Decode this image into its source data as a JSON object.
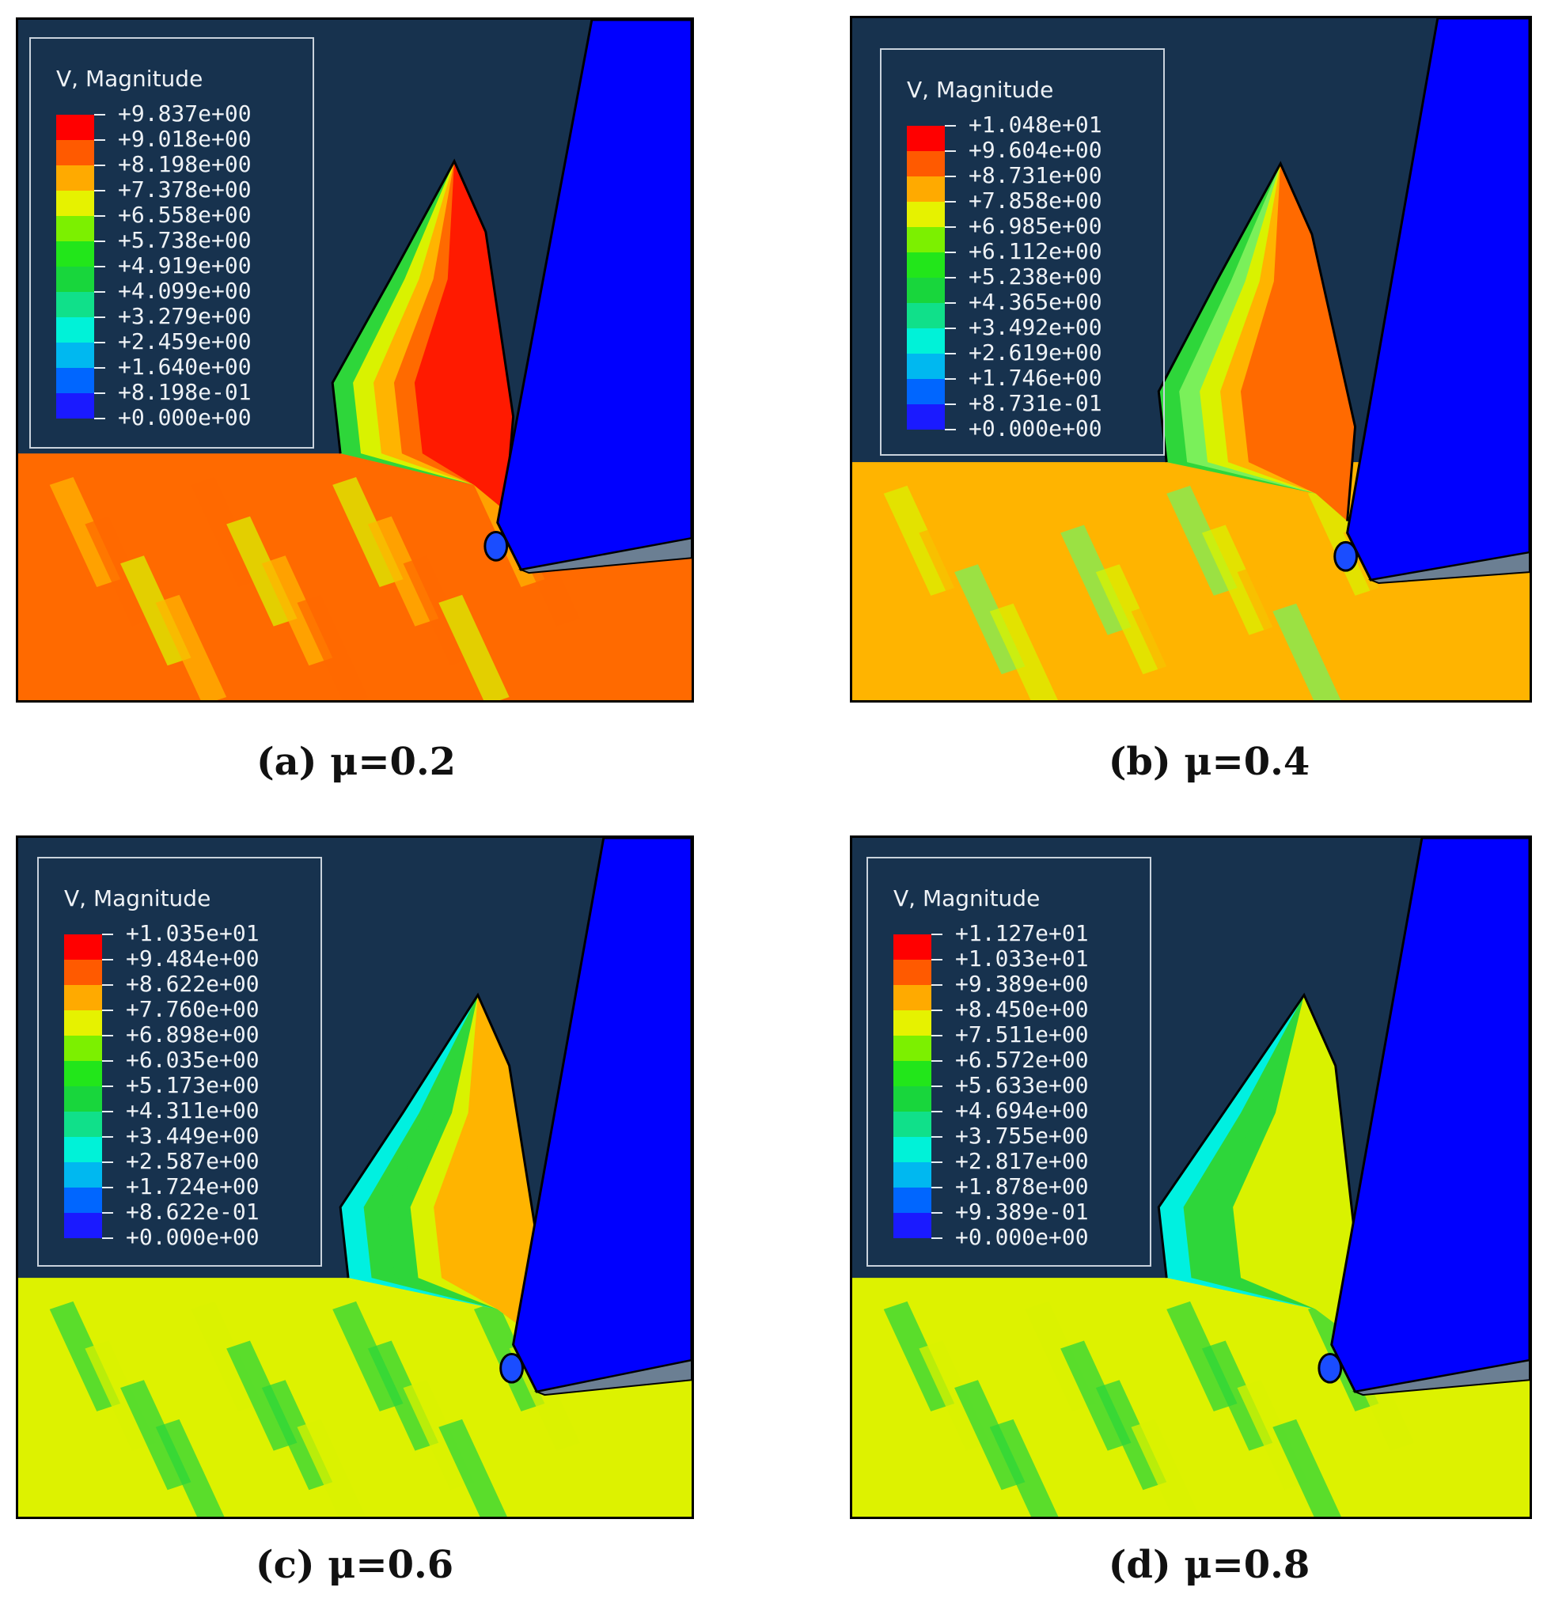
{
  "panels": [
    {
      "caption": "(a) μ=0.2",
      "legend_title": "V, Magnitude",
      "legend_values": [
        "+9.837e+00",
        "+9.018e+00",
        "+8.198e+00",
        "+7.378e+00",
        "+6.558e+00",
        "+5.738e+00",
        "+4.919e+00",
        "+4.099e+00",
        "+3.279e+00",
        "+2.459e+00",
        "+1.640e+00",
        "+8.198e-01",
        "+0.000e+00"
      ],
      "workpiece_color": "#ff6a00",
      "chip_colors": [
        "#2ed63a",
        "#d9f200",
        "#ffb400",
        "#ff6a00",
        "#ff1a00"
      ]
    },
    {
      "caption": "(b) μ=0.4",
      "legend_title": "V, Magnitude",
      "legend_values": [
        "+1.048e+01",
        "+9.604e+00",
        "+8.731e+00",
        "+7.858e+00",
        "+6.985e+00",
        "+6.112e+00",
        "+5.238e+00",
        "+4.365e+00",
        "+3.492e+00",
        "+2.619e+00",
        "+1.746e+00",
        "+8.731e-01",
        "+0.000e+00"
      ],
      "workpiece_color": "#ffb400",
      "chip_colors": [
        "#2ed63a",
        "#7af05a",
        "#d9f200",
        "#ffb400",
        "#ff6a00"
      ]
    },
    {
      "caption": "(c) μ=0.6",
      "legend_title": "V, Magnitude",
      "legend_values": [
        "+1.035e+01",
        "+9.484e+00",
        "+8.622e+00",
        "+7.760e+00",
        "+6.898e+00",
        "+6.035e+00",
        "+5.173e+00",
        "+4.311e+00",
        "+3.449e+00",
        "+2.587e+00",
        "+1.724e+00",
        "+8.622e-01",
        "+0.000e+00"
      ],
      "workpiece_color": "#ddf200",
      "chip_colors": [
        "#00f0e0",
        "#2ed63a",
        "#2ed63a",
        "#d9f200",
        "#ffb400"
      ]
    },
    {
      "caption": "(d) μ=0.8",
      "legend_title": "V, Magnitude",
      "legend_values": [
        "+1.127e+01",
        "+1.033e+01",
        "+9.389e+00",
        "+8.450e+00",
        "+7.511e+00",
        "+6.572e+00",
        "+5.633e+00",
        "+4.694e+00",
        "+3.755e+00",
        "+2.817e+00",
        "+1.878e+00",
        "+9.389e-01",
        "+0.000e+00"
      ],
      "workpiece_color": "#ddf200",
      "chip_colors": [
        "#00f0e0",
        "#2ed63a",
        "#2ed63a",
        "#d9f200",
        "#d9f200"
      ]
    }
  ],
  "legend_colors": [
    "#ff0000",
    "#ff5a00",
    "#ffaa00",
    "#e6f200",
    "#7cf000",
    "#22e61a",
    "#18d63c",
    "#10e08a",
    "#00f2d8",
    "#00b8f0",
    "#0066ff",
    "#1a1aff"
  ],
  "tool_color": "#0000ff",
  "background_color": "#17324e"
}
